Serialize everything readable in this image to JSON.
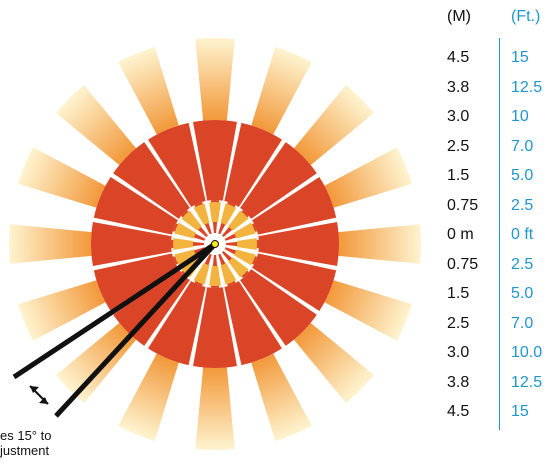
{
  "diagram": {
    "rays": 16,
    "colors": {
      "near": "#f3b43f",
      "mid": "#da4527",
      "far": "#f5a23f",
      "ft_text": "#1f95cf",
      "divider": "#1f95cf",
      "lens": "#f7e71e",
      "angle_lines": "#111111"
    }
  },
  "table": {
    "header_m": "(M)",
    "header_ft": "(Ft.)",
    "rows": [
      {
        "m": "4.5",
        "ft": "15"
      },
      {
        "m": "3.8",
        "ft": "12.5"
      },
      {
        "m": "3.0",
        "ft": "10"
      },
      {
        "m": "2.5",
        "ft": "7.0"
      },
      {
        "m": "1.5",
        "ft": "5.0"
      },
      {
        "m": "0.75",
        "ft": "2.5"
      },
      {
        "m": "0 m",
        "ft": "0 ft"
      },
      {
        "m": "0.75",
        "ft": "2.5"
      },
      {
        "m": "1.5",
        "ft": "5.0"
      },
      {
        "m": "2.5",
        "ft": "7.0"
      },
      {
        "m": "3.0",
        "ft": "10.0"
      },
      {
        "m": "3.8",
        "ft": "12.5"
      },
      {
        "m": "4.5",
        "ft": "15"
      }
    ]
  },
  "note": {
    "line1": "es 15° to",
    "line2": "justment"
  }
}
